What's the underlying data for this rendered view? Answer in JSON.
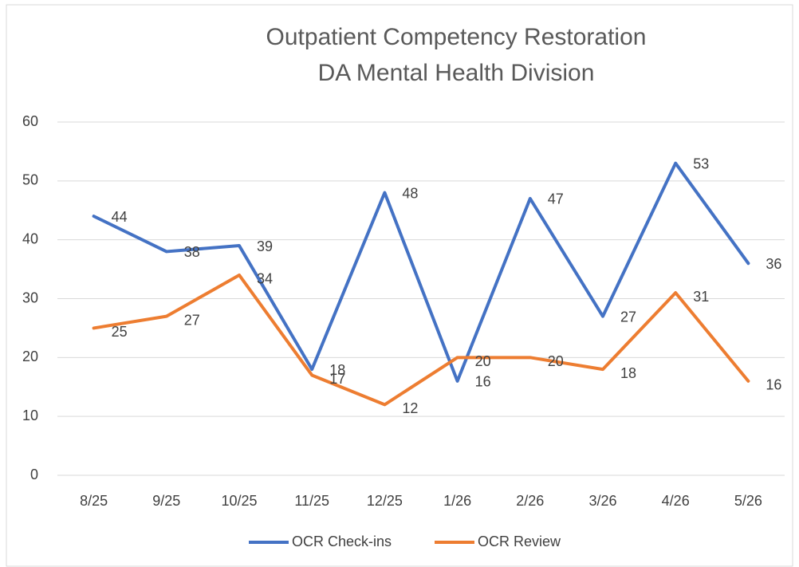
{
  "chart_data": {
    "type": "line",
    "title": [
      "Outpatient Competency Restoration",
      "DA Mental Health Division"
    ],
    "categories": [
      "8/25",
      "9/25",
      "10/25",
      "11/25",
      "12/25",
      "1/26",
      "2/26",
      "3/26",
      "4/26",
      "5/26"
    ],
    "series": [
      {
        "name": "OCR Check-ins",
        "color": "#4472c4",
        "values": [
          44,
          38,
          39,
          18,
          48,
          16,
          47,
          27,
          53,
          36
        ]
      },
      {
        "name": "OCR Review",
        "color": "#ed7d31",
        "values": [
          25,
          27,
          34,
          17,
          12,
          20,
          20,
          18,
          31,
          16
        ]
      }
    ],
    "ylim": [
      0,
      60
    ],
    "yticks": [
      0,
      10,
      20,
      30,
      40,
      50,
      60
    ],
    "grid": true,
    "legend": "bottom"
  }
}
